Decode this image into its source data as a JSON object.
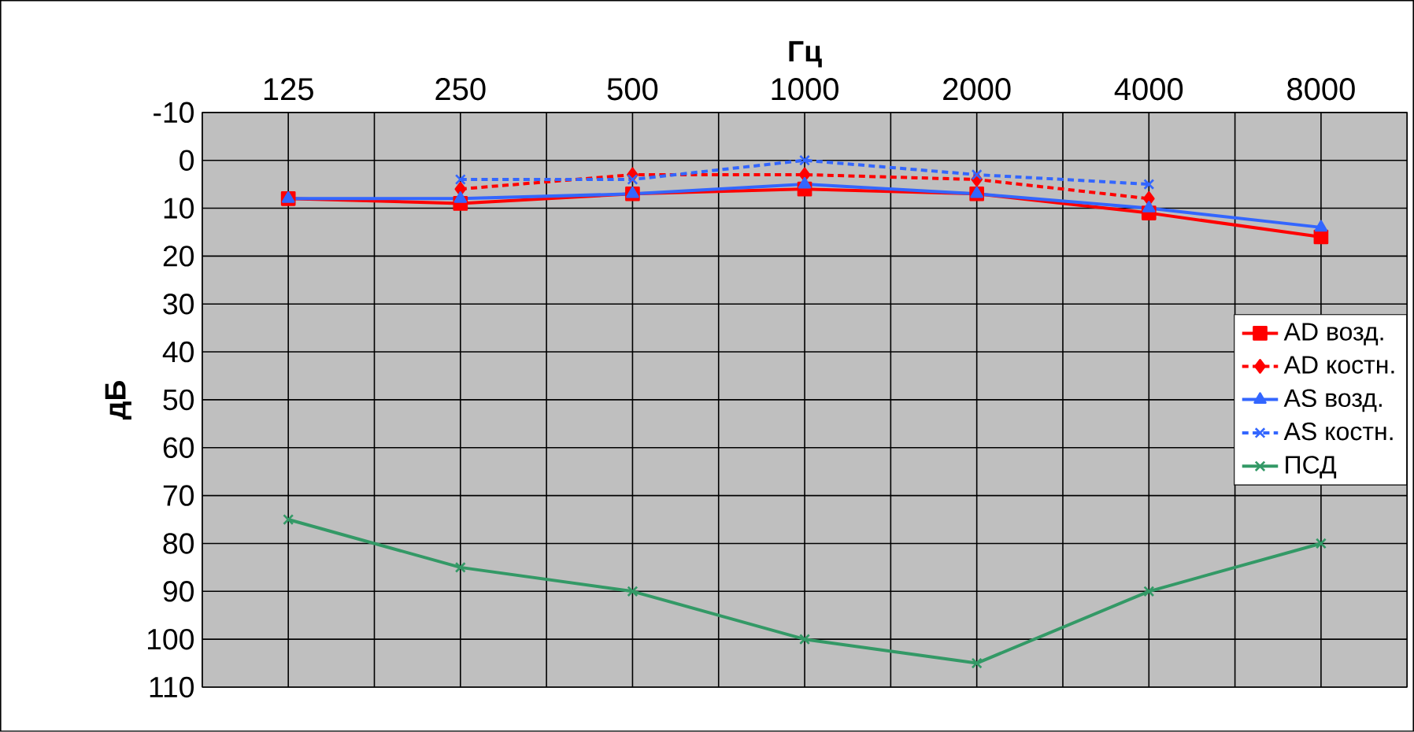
{
  "chart_data": {
    "type": "line",
    "title": "Гц",
    "ylabel": "дБ",
    "categories": [
      "125",
      "250",
      "500",
      "1000",
      "2000",
      "4000",
      "8000"
    ],
    "ylim": [
      110,
      -10
    ],
    "yticks": [
      -10,
      0,
      10,
      20,
      30,
      40,
      50,
      60,
      70,
      80,
      90,
      100,
      110
    ],
    "grid": true,
    "legend": "right",
    "series": [
      {
        "name": "AD  возд.",
        "color": "#ff0000",
        "marker": "square",
        "line_style": "solid",
        "values": [
          8,
          9,
          7,
          6,
          7,
          11,
          16
        ]
      },
      {
        "name": "AD  костн.",
        "color": "#ff0000",
        "marker": "diamond",
        "line_style": "dotted",
        "values": [
          null,
          6,
          3,
          3,
          4,
          8,
          null
        ]
      },
      {
        "name": "AS  возд.",
        "color": "#3366ff",
        "marker": "triangle",
        "line_style": "solid",
        "values": [
          8,
          8,
          7,
          5,
          7,
          10,
          14
        ]
      },
      {
        "name": "AS  костн.",
        "color": "#3366ff",
        "marker": "cross",
        "line_style": "dotted",
        "values": [
          null,
          4,
          4,
          0,
          3,
          5,
          null
        ]
      },
      {
        "name": "ПСД",
        "color": "#339966",
        "marker": "cross",
        "line_style": "solid",
        "values": [
          75,
          85,
          90,
          100,
          105,
          90,
          80
        ]
      }
    ]
  }
}
